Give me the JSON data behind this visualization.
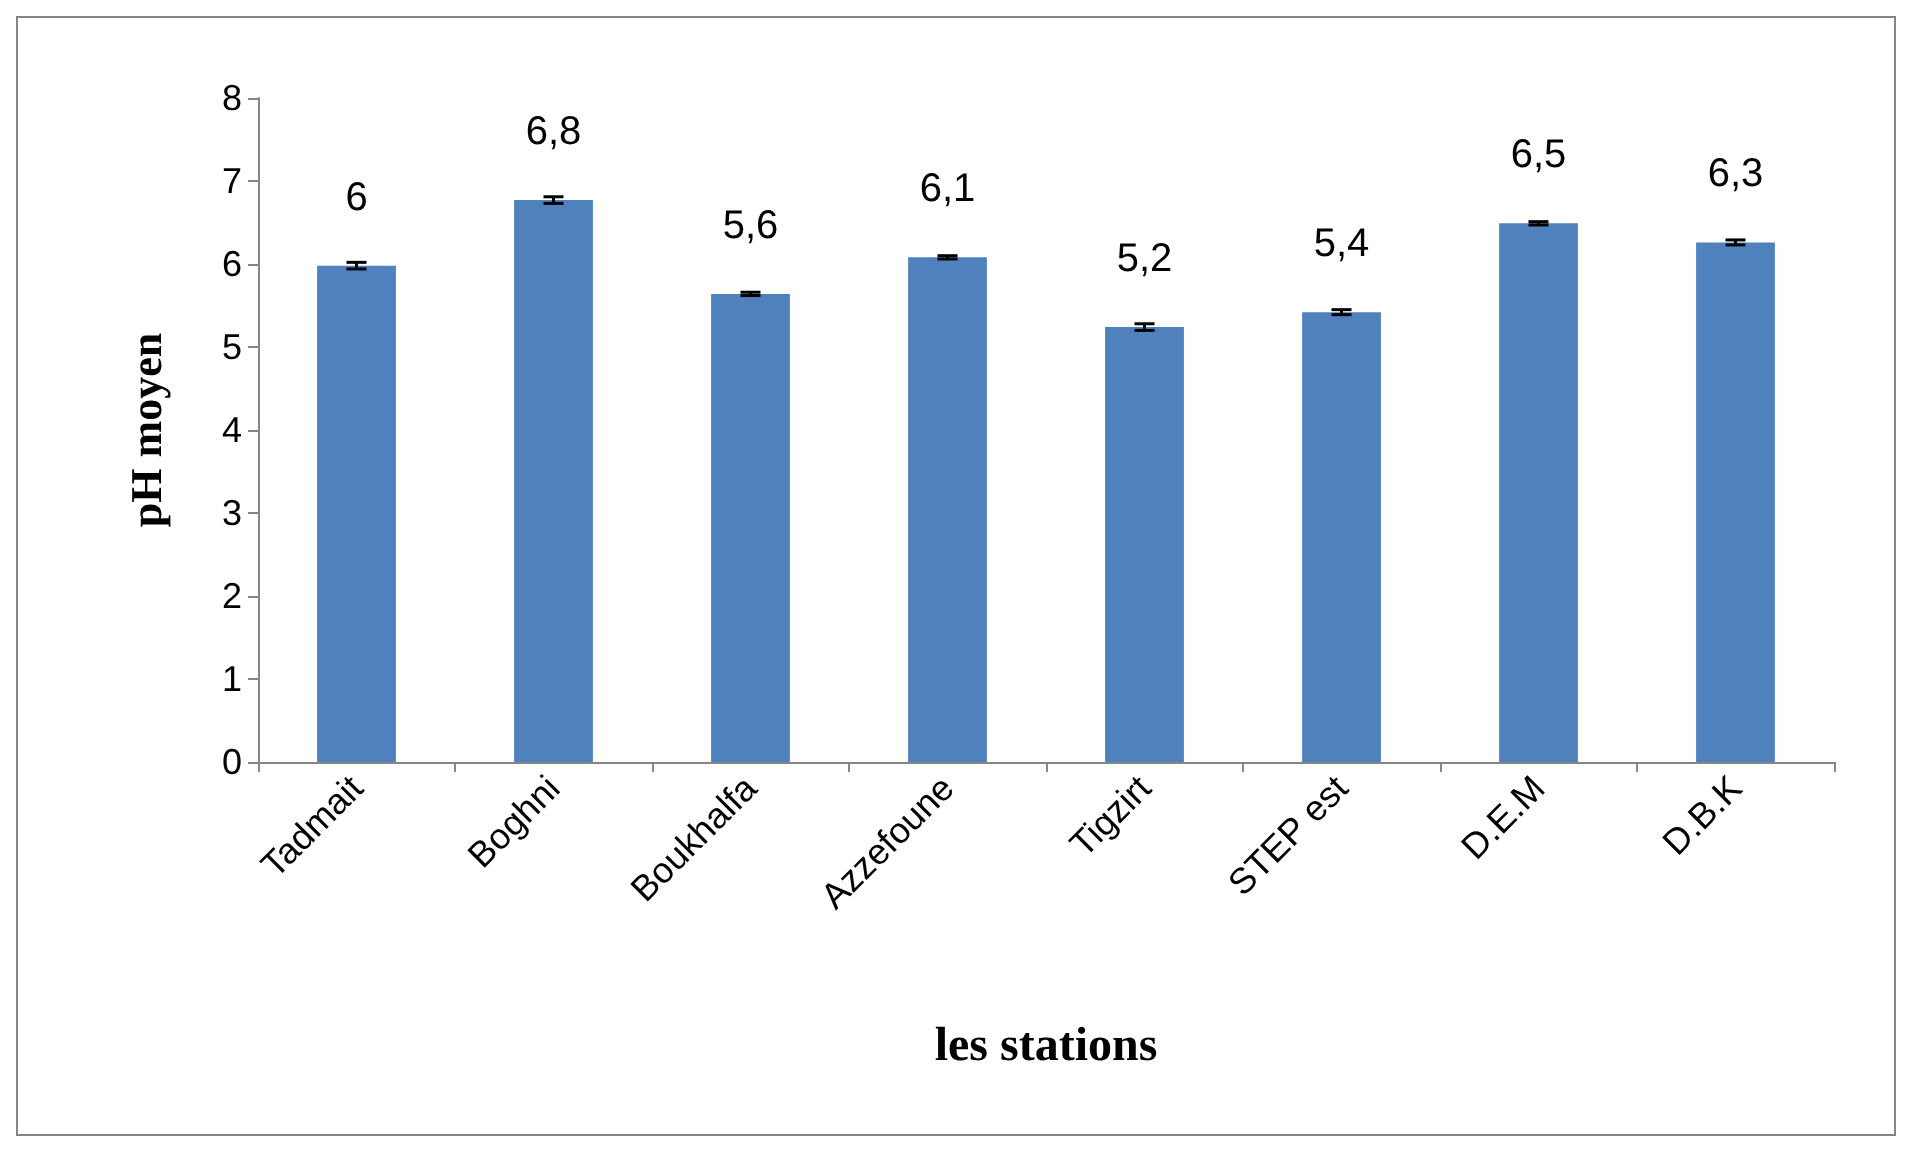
{
  "chart_data": {
    "type": "bar",
    "xlabel": "les stations",
    "ylabel": "pH moyen",
    "categories": [
      "Tadmait",
      "Boghni",
      "Boukhalfa",
      "Azzefoune",
      "Tigzirt",
      "STEP est",
      "D.E.M",
      "D.B.K"
    ],
    "values": [
      5.98,
      6.77,
      5.64,
      6.08,
      5.24,
      5.42,
      6.49,
      6.26
    ],
    "errors": [
      0.04,
      0.04,
      0.02,
      0.02,
      0.04,
      0.03,
      0.02,
      0.03
    ],
    "value_labels": [
      "6",
      "6,8",
      "5,6",
      "6,1",
      "5,2",
      "5,4",
      "6,5",
      "6,3"
    ],
    "color": "#4f81bd",
    "ylim": [
      0,
      8
    ],
    "yticks": [
      0,
      1,
      2,
      3,
      4,
      5,
      6,
      7,
      8
    ],
    "grid": false
  }
}
